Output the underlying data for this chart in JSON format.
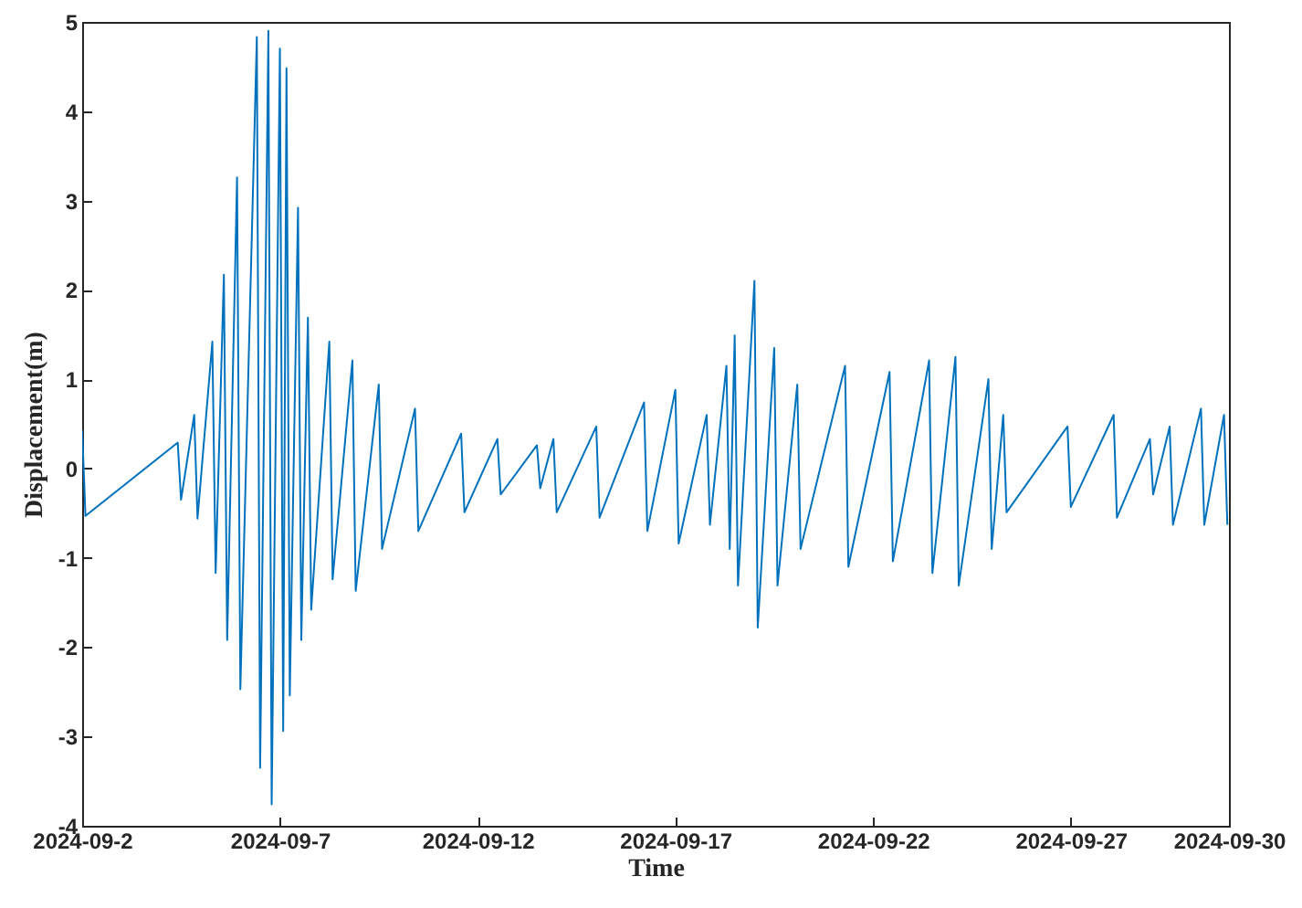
{
  "chart_data": {
    "type": "line",
    "xlabel": "Time",
    "ylabel": "Displacement(m)",
    "grid": false,
    "line_style": "solid",
    "marker": "none",
    "xlim": [
      "2024-09-02",
      "2024-09-30T23:59"
    ],
    "xticks": [
      {
        "value": "2024-09-02",
        "label": "2024-09-2"
      },
      {
        "value": "2024-09-07",
        "label": "2024-09-7"
      },
      {
        "value": "2024-09-12",
        "label": "2024-09-12"
      },
      {
        "value": "2024-09-17",
        "label": "2024-09-17"
      },
      {
        "value": "2024-09-22",
        "label": "2024-09-22"
      },
      {
        "value": "2024-09-27",
        "label": "2024-09-27"
      },
      {
        "value": "2024-09-30T23:59",
        "label": "2024-09-30"
      }
    ],
    "ylim": [
      -4,
      5
    ],
    "yticks": [
      -4,
      -3,
      -2,
      -1,
      0,
      1,
      2,
      3,
      4,
      5
    ],
    "series": [
      {
        "color": "#0072bd",
        "x": [
          "2024-09-02T00:00",
          "2024-09-02T02:00",
          "2024-09-04T10:00",
          "2024-09-04T12:00",
          "2024-09-04T20:00",
          "2024-09-04T22:00",
          "2024-09-05T07:00",
          "2024-09-05T09:00",
          "2024-09-05T14:00",
          "2024-09-05T16:00",
          "2024-09-05T22:00",
          "2024-09-06T00:00",
          "2024-09-06T10:00",
          "2024-09-06T12:00",
          "2024-09-06T17:00",
          "2024-09-06T19:00",
          "2024-09-07T00:00",
          "2024-09-07T02:00",
          "2024-09-07T04:00",
          "2024-09-07T06:00",
          "2024-09-07T11:00",
          "2024-09-07T13:00",
          "2024-09-07T17:00",
          "2024-09-07T19:00",
          "2024-09-08T06:00",
          "2024-09-08T08:00",
          "2024-09-08T20:00",
          "2024-09-08T22:00",
          "2024-09-09T12:00",
          "2024-09-09T14:00",
          "2024-09-10T10:00",
          "2024-09-10T12:00",
          "2024-09-11T14:00",
          "2024-09-11T16:00",
          "2024-09-12T12:00",
          "2024-09-12T14:00",
          "2024-09-13T12:00",
          "2024-09-13T14:00",
          "2024-09-13T22:00",
          "2024-09-14T00:00",
          "2024-09-15T00:00",
          "2024-09-15T02:00",
          "2024-09-16T05:00",
          "2024-09-16T07:00",
          "2024-09-17T00:00",
          "2024-09-17T02:00",
          "2024-09-17T19:00",
          "2024-09-17T21:00",
          "2024-09-18T07:00",
          "2024-09-18T09:00",
          "2024-09-18T12:00",
          "2024-09-18T14:00",
          "2024-09-19T00:00",
          "2024-09-19T02:00",
          "2024-09-19T12:00",
          "2024-09-19T14:00",
          "2024-09-20T02:00",
          "2024-09-20T04:00",
          "2024-09-21T07:00",
          "2024-09-21T09:00",
          "2024-09-22T10:00",
          "2024-09-22T12:00",
          "2024-09-23T10:00",
          "2024-09-23T12:00",
          "2024-09-24T02:00",
          "2024-09-24T04:00",
          "2024-09-24T22:00",
          "2024-09-25T00:00",
          "2024-09-25T07:00",
          "2024-09-25T09:00",
          "2024-09-26T22:00",
          "2024-09-27T00:00",
          "2024-09-28T02:00",
          "2024-09-28T04:00",
          "2024-09-29T00:00",
          "2024-09-29T02:00",
          "2024-09-29T12:00",
          "2024-09-29T14:00",
          "2024-09-30T07:00",
          "2024-09-30T09:00",
          "2024-09-30T21:00",
          "2024-09-30T23:00"
        ],
        "values": [
          0.43,
          -0.53,
          0.29,
          -0.35,
          0.6,
          -0.56,
          1.42,
          -1.17,
          2.17,
          -1.92,
          3.26,
          -2.47,
          4.83,
          -3.35,
          4.9,
          -3.76,
          4.7,
          -2.94,
          4.48,
          -2.54,
          2.92,
          -1.92,
          1.69,
          -1.58,
          1.42,
          -1.24,
          1.21,
          -1.37,
          0.94,
          -0.9,
          0.67,
          -0.7,
          0.39,
          -0.49,
          0.33,
          -0.29,
          0.26,
          -0.22,
          0.33,
          -0.49,
          0.47,
          -0.55,
          0.74,
          -0.7,
          0.88,
          -0.84,
          0.6,
          -0.63,
          1.15,
          -0.9,
          1.49,
          -1.31,
          2.1,
          -1.78,
          1.35,
          -1.31,
          0.94,
          -0.9,
          1.15,
          -1.1,
          1.08,
          -1.04,
          1.21,
          -1.17,
          1.25,
          -1.31,
          1.0,
          -0.9,
          0.6,
          -0.49,
          0.47,
          -0.43,
          0.6,
          -0.55,
          0.33,
          -0.29,
          0.47,
          -0.63,
          0.67,
          -0.63,
          0.6,
          -0.63
        ]
      }
    ]
  }
}
